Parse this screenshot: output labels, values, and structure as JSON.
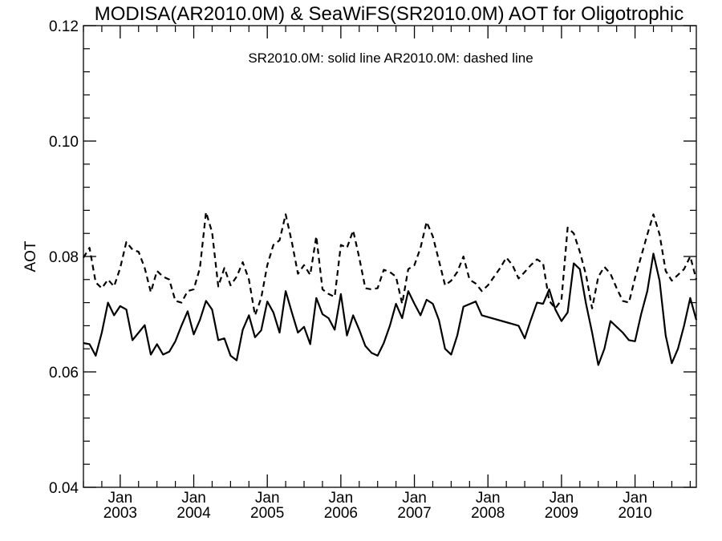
{
  "chart_data": {
    "type": "line",
    "title": "MODISA(AR2010.0M) & SeaWiFS(SR2010.0M)  AOT for Oligotrophic",
    "ylabel": "AOT",
    "xlabel": "",
    "annotation": "SR2010.0M: solid line   AR2010.0M: dashed line",
    "ylim": [
      0.04,
      0.12
    ],
    "xlim": [
      "2002-07",
      "2010-11"
    ],
    "y_ticks": [
      "0.04",
      "0.06",
      "0.08",
      "0.10",
      "0.12"
    ],
    "x_ticks": [
      {
        "month": "Jan",
        "year": "2003",
        "x": "2003-01"
      },
      {
        "month": "Jan",
        "year": "2004",
        "x": "2004-01"
      },
      {
        "month": "Jan",
        "year": "2005",
        "x": "2005-01"
      },
      {
        "month": "Jan",
        "year": "2006",
        "x": "2006-01"
      },
      {
        "month": "Jan",
        "year": "2007",
        "x": "2007-01"
      },
      {
        "month": "Jan",
        "year": "2008",
        "x": "2008-01"
      },
      {
        "month": "Jan",
        "year": "2009",
        "x": "2009-01"
      },
      {
        "month": "Jan",
        "year": "2010",
        "x": "2010-01"
      }
    ],
    "grid": false,
    "legend": "none",
    "series": [
      {
        "style": "solid",
        "color": "#000000",
        "points": [
          [
            "2002-07",
            0.065
          ],
          [
            "2002-08",
            0.0648
          ],
          [
            "2002-09",
            0.0628
          ],
          [
            "2002-10",
            0.0668
          ],
          [
            "2002-11",
            0.072
          ],
          [
            "2002-12",
            0.0698
          ],
          [
            "2003-01",
            0.0714
          ],
          [
            "2003-02",
            0.0708
          ],
          [
            "2003-03",
            0.0655
          ],
          [
            "2003-04",
            0.0668
          ],
          [
            "2003-05",
            0.0681
          ],
          [
            "2003-06",
            0.063
          ],
          [
            "2003-07",
            0.0648
          ],
          [
            "2003-08",
            0.063
          ],
          [
            "2003-09",
            0.0635
          ],
          [
            "2003-10",
            0.0653
          ],
          [
            "2003-11",
            0.068
          ],
          [
            "2003-12",
            0.0705
          ],
          [
            "2004-01",
            0.0665
          ],
          [
            "2004-02",
            0.069
          ],
          [
            "2004-03",
            0.0723
          ],
          [
            "2004-04",
            0.0708
          ],
          [
            "2004-05",
            0.0655
          ],
          [
            "2004-06",
            0.0658
          ],
          [
            "2004-07",
            0.0628
          ],
          [
            "2004-08",
            0.062
          ],
          [
            "2004-09",
            0.0673
          ],
          [
            "2004-10",
            0.0698
          ],
          [
            "2004-11",
            0.066
          ],
          [
            "2004-12",
            0.0672
          ],
          [
            "2005-01",
            0.0722
          ],
          [
            "2005-02",
            0.0703
          ],
          [
            "2005-03",
            0.0668
          ],
          [
            "2005-04",
            0.074
          ],
          [
            "2005-05",
            0.0703
          ],
          [
            "2005-06",
            0.0668
          ],
          [
            "2005-07",
            0.0678
          ],
          [
            "2005-08",
            0.0648
          ],
          [
            "2005-09",
            0.0728
          ],
          [
            "2005-10",
            0.07
          ],
          [
            "2005-11",
            0.0693
          ],
          [
            "2005-12",
            0.0673
          ],
          [
            "2006-01",
            0.0735
          ],
          [
            "2006-02",
            0.0663
          ],
          [
            "2006-03",
            0.0698
          ],
          [
            "2006-04",
            0.0673
          ],
          [
            "2006-05",
            0.0645
          ],
          [
            "2006-06",
            0.0633
          ],
          [
            "2006-07",
            0.0628
          ],
          [
            "2006-08",
            0.065
          ],
          [
            "2006-09",
            0.068
          ],
          [
            "2006-10",
            0.0718
          ],
          [
            "2006-11",
            0.0693
          ],
          [
            "2006-12",
            0.074
          ],
          [
            "2007-01",
            0.0718
          ],
          [
            "2007-02",
            0.0698
          ],
          [
            "2007-03",
            0.0725
          ],
          [
            "2007-04",
            0.0718
          ],
          [
            "2007-05",
            0.069
          ],
          [
            "2007-06",
            0.064
          ],
          [
            "2007-07",
            0.063
          ],
          [
            "2007-08",
            0.0663
          ],
          [
            "2007-09",
            0.0713
          ],
          [
            "2007-11",
            0.0722
          ],
          [
            "2007-12",
            0.0698
          ],
          [
            "2008-06",
            0.068
          ],
          [
            "2008-07",
            0.0658
          ],
          [
            "2008-08",
            0.069
          ],
          [
            "2008-09",
            0.072
          ],
          [
            "2008-10",
            0.0718
          ],
          [
            "2008-11",
            0.0743
          ],
          [
            "2008-12",
            0.0708
          ],
          [
            "2009-01",
            0.0688
          ],
          [
            "2009-02",
            0.0703
          ],
          [
            "2009-03",
            0.0788
          ],
          [
            "2009-04",
            0.0778
          ],
          [
            "2009-05",
            0.0718
          ],
          [
            "2009-06",
            0.0668
          ],
          [
            "2009-07",
            0.0612
          ],
          [
            "2009-08",
            0.064
          ],
          [
            "2009-09",
            0.0688
          ],
          [
            "2009-10",
            0.0678
          ],
          [
            "2009-11",
            0.0668
          ],
          [
            "2009-12",
            0.0655
          ],
          [
            "2010-01",
            0.0653
          ],
          [
            "2010-02",
            0.07
          ],
          [
            "2010-03",
            0.074
          ],
          [
            "2010-04",
            0.0805
          ],
          [
            "2010-05",
            0.0758
          ],
          [
            "2010-06",
            0.0663
          ],
          [
            "2010-07",
            0.0615
          ],
          [
            "2010-08",
            0.064
          ],
          [
            "2010-09",
            0.068
          ],
          [
            "2010-10",
            0.0728
          ],
          [
            "2010-11",
            0.069
          ]
        ]
      },
      {
        "style": "dashed",
        "color": "#000000",
        "points": [
          [
            "2002-07",
            0.0798
          ],
          [
            "2002-08",
            0.0815
          ],
          [
            "2002-09",
            0.0755
          ],
          [
            "2002-10",
            0.0745
          ],
          [
            "2002-11",
            0.076
          ],
          [
            "2002-12",
            0.0748
          ],
          [
            "2003-01",
            0.078
          ],
          [
            "2003-02",
            0.0825
          ],
          [
            "2003-03",
            0.0812
          ],
          [
            "2003-04",
            0.0808
          ],
          [
            "2003-05",
            0.078
          ],
          [
            "2003-06",
            0.0738
          ],
          [
            "2003-07",
            0.0775
          ],
          [
            "2003-08",
            0.0765
          ],
          [
            "2003-09",
            0.076
          ],
          [
            "2003-10",
            0.0723
          ],
          [
            "2003-11",
            0.072
          ],
          [
            "2003-12",
            0.074
          ],
          [
            "2004-01",
            0.0743
          ],
          [
            "2004-02",
            0.078
          ],
          [
            "2004-03",
            0.0877
          ],
          [
            "2004-04",
            0.0842
          ],
          [
            "2004-05",
            0.0748
          ],
          [
            "2004-06",
            0.078
          ],
          [
            "2004-07",
            0.075
          ],
          [
            "2004-08",
            0.0765
          ],
          [
            "2004-09",
            0.079
          ],
          [
            "2004-10",
            0.076
          ],
          [
            "2004-11",
            0.0698
          ],
          [
            "2004-12",
            0.0728
          ],
          [
            "2005-01",
            0.0785
          ],
          [
            "2005-02",
            0.082
          ],
          [
            "2005-03",
            0.0828
          ],
          [
            "2005-04",
            0.0873
          ],
          [
            "2005-05",
            0.0825
          ],
          [
            "2005-06",
            0.077
          ],
          [
            "2005-07",
            0.0785
          ],
          [
            "2005-08",
            0.0768
          ],
          [
            "2005-09",
            0.0835
          ],
          [
            "2005-10",
            0.0743
          ],
          [
            "2005-11",
            0.0735
          ],
          [
            "2005-12",
            0.073
          ],
          [
            "2006-01",
            0.082
          ],
          [
            "2006-02",
            0.0815
          ],
          [
            "2006-03",
            0.0845
          ],
          [
            "2006-04",
            0.0798
          ],
          [
            "2006-05",
            0.0745
          ],
          [
            "2006-06",
            0.0743
          ],
          [
            "2006-07",
            0.0745
          ],
          [
            "2006-08",
            0.0777
          ],
          [
            "2006-09",
            0.0773
          ],
          [
            "2006-10",
            0.0765
          ],
          [
            "2006-11",
            0.0718
          ],
          [
            "2006-12",
            0.0778
          ],
          [
            "2007-01",
            0.0785
          ],
          [
            "2007-02",
            0.0815
          ],
          [
            "2007-03",
            0.086
          ],
          [
            "2007-04",
            0.0835
          ],
          [
            "2007-05",
            0.0793
          ],
          [
            "2007-06",
            0.075
          ],
          [
            "2007-07",
            0.0758
          ],
          [
            "2007-08",
            0.0773
          ],
          [
            "2007-09",
            0.08
          ],
          [
            "2007-10",
            0.076
          ],
          [
            "2007-11",
            0.0753
          ],
          [
            "2007-12",
            0.074
          ],
          [
            "2008-01",
            0.075
          ],
          [
            "2008-02",
            0.0765
          ],
          [
            "2008-03",
            0.078
          ],
          [
            "2008-04",
            0.0798
          ],
          [
            "2008-05",
            0.0785
          ],
          [
            "2008-06",
            0.0762
          ],
          [
            "2008-07",
            0.0773
          ],
          [
            "2008-08",
            0.0785
          ],
          [
            "2008-09",
            0.0795
          ],
          [
            "2008-10",
            0.0788
          ],
          [
            "2008-11",
            0.0723
          ],
          [
            "2008-12",
            0.071
          ],
          [
            "2009-01",
            0.0725
          ],
          [
            "2009-02",
            0.085
          ],
          [
            "2009-03",
            0.084
          ],
          [
            "2009-04",
            0.0808
          ],
          [
            "2009-05",
            0.0768
          ],
          [
            "2009-06",
            0.071
          ],
          [
            "2009-07",
            0.0765
          ],
          [
            "2009-08",
            0.0782
          ],
          [
            "2009-09",
            0.077
          ],
          [
            "2009-10",
            0.0745
          ],
          [
            "2009-11",
            0.0723
          ],
          [
            "2009-12",
            0.072
          ],
          [
            "2010-01",
            0.0763
          ],
          [
            "2010-02",
            0.08
          ],
          [
            "2010-03",
            0.0838
          ],
          [
            "2010-04",
            0.0873
          ],
          [
            "2010-05",
            0.0838
          ],
          [
            "2010-06",
            0.0775
          ],
          [
            "2010-07",
            0.0758
          ],
          [
            "2010-08",
            0.0768
          ],
          [
            "2010-09",
            0.0778
          ],
          [
            "2010-10",
            0.08
          ],
          [
            "2010-11",
            0.076
          ]
        ]
      }
    ]
  }
}
